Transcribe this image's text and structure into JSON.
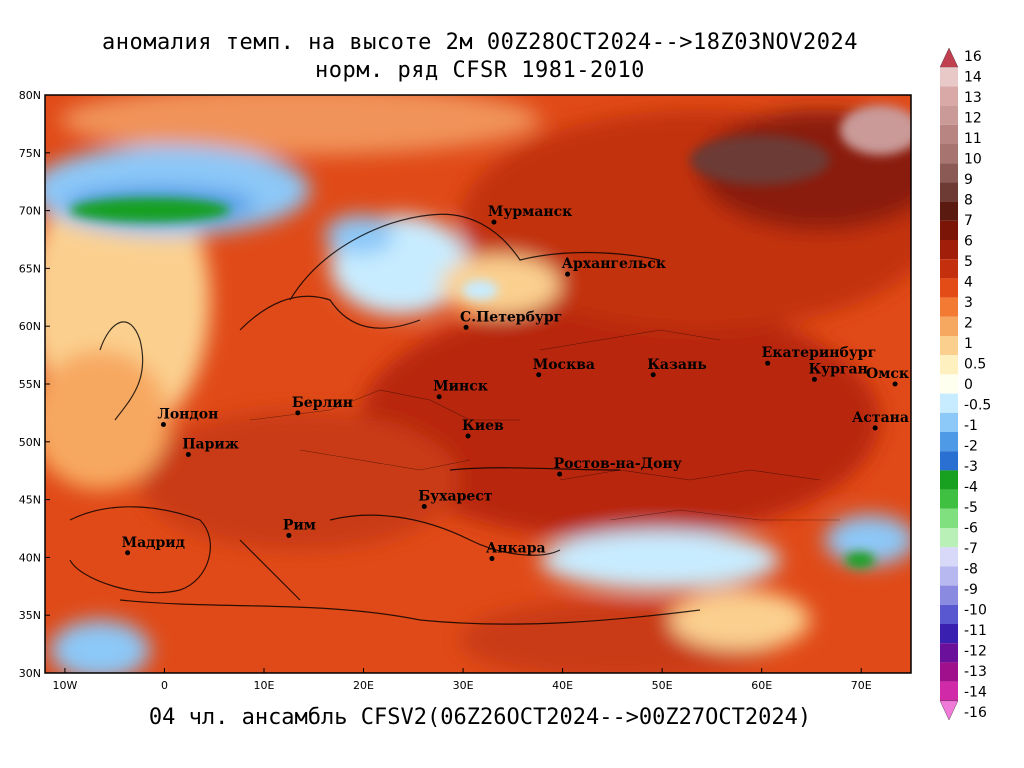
{
  "title": {
    "line1": "аномалия темп. на высоте 2м 00Z28OCT2024-->18Z03NOV2024",
    "line2": "норм. ряд CFSR 1981-2010"
  },
  "footer": "04 чл. ансамбль CFSV2(06Z26OCT2024-->00Z27OCT2024)",
  "map": {
    "lon_range": [
      -12,
      75
    ],
    "lat_range": [
      30,
      80
    ],
    "lat_ticks": [
      "30N",
      "35N",
      "40N",
      "45N",
      "50N",
      "55N",
      "60N",
      "65N",
      "70N",
      "75N",
      "80N"
    ],
    "lat_tick_values": [
      30,
      35,
      40,
      45,
      50,
      55,
      60,
      65,
      70,
      75,
      80
    ],
    "lon_ticks": [
      "10W",
      "0",
      "10E",
      "20E",
      "30E",
      "40E",
      "50E",
      "60E",
      "70E"
    ],
    "lon_tick_values": [
      -10,
      0,
      10,
      20,
      30,
      40,
      50,
      60,
      70
    ]
  },
  "cities": [
    {
      "name": "Мурманск",
      "lon": 33.1,
      "lat": 69.0
    },
    {
      "name": "Архангельск",
      "lon": 40.5,
      "lat": 64.5
    },
    {
      "name": "С.Петербург",
      "lon": 30.3,
      "lat": 59.9
    },
    {
      "name": "Москва",
      "lon": 37.6,
      "lat": 55.8
    },
    {
      "name": "Казань",
      "lon": 49.1,
      "lat": 55.8
    },
    {
      "name": "Екатеринбург",
      "lon": 60.6,
      "lat": 56.8
    },
    {
      "name": "Курган",
      "lon": 65.3,
      "lat": 55.4
    },
    {
      "name": "Омск",
      "lon": 73.4,
      "lat": 55.0
    },
    {
      "name": "Астана",
      "lon": 71.4,
      "lat": 51.2
    },
    {
      "name": "Минск",
      "lon": 27.6,
      "lat": 53.9
    },
    {
      "name": "Берлин",
      "lon": 13.4,
      "lat": 52.5
    },
    {
      "name": "Лондон",
      "lon": -0.1,
      "lat": 51.5
    },
    {
      "name": "Париж",
      "lon": 2.4,
      "lat": 48.9
    },
    {
      "name": "Киев",
      "lon": 30.5,
      "lat": 50.5
    },
    {
      "name": "Ростов-на-Дону",
      "lon": 39.7,
      "lat": 47.2
    },
    {
      "name": "Бухарест",
      "lon": 26.1,
      "lat": 44.4
    },
    {
      "name": "Рим",
      "lon": 12.5,
      "lat": 41.9
    },
    {
      "name": "Мадрид",
      "lon": -3.7,
      "lat": 40.4
    },
    {
      "name": "Анкара",
      "lon": 32.9,
      "lat": 39.9
    }
  ],
  "colorbar": {
    "labels": [
      "16",
      "14",
      "13",
      "12",
      "11",
      "10",
      "9",
      "8",
      "7",
      "6",
      "5",
      "4",
      "3",
      "2",
      "1",
      "0.5",
      "0",
      "-0.5",
      "-1",
      "-2",
      "-3",
      "-4",
      "-5",
      "-6",
      "-7",
      "-8",
      "-9",
      "-10",
      "-11",
      "-12",
      "-13",
      "-14",
      "-16"
    ],
    "colors": [
      "#d8e0e8",
      "#e9c8c8",
      "#d9a9a8",
      "#c99a98",
      "#b98582",
      "#a77470",
      "#8c5a54",
      "#6d3a34",
      "#5a1a10",
      "#7a1508",
      "#a01e0a",
      "#c4300e",
      "#e34c16",
      "#f27a32",
      "#f7a860",
      "#fbd08f",
      "#fff0c0",
      "#fffff0",
      "#c8ecff",
      "#8cc8f8",
      "#4f9ae6",
      "#2a70d2",
      "#18a020",
      "#40c040",
      "#80e080",
      "#b8f0b8",
      "#d8d8f8",
      "#b8b8f0",
      "#8a8ae0",
      "#5a58d0",
      "#3a20b0",
      "#6a109a",
      "#a0108c",
      "#d02aa8",
      "#f07ad8"
    ]
  }
}
